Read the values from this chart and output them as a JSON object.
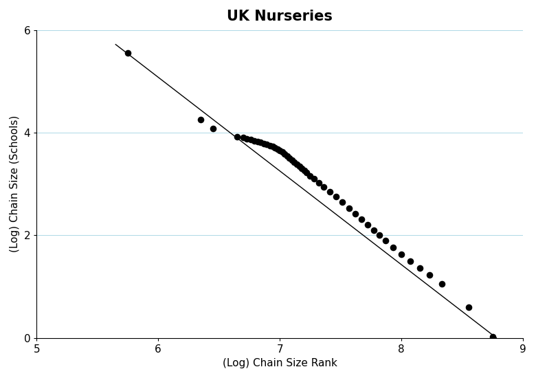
{
  "title": "UK Nurseries",
  "xlabel": "(Log) Chain Size Rank",
  "ylabel": "(Log) Chain Size (Schools)",
  "xlim": [
    5,
    9
  ],
  "ylim": [
    0,
    6
  ],
  "xticks": [
    5,
    6,
    7,
    8,
    9
  ],
  "yticks": [
    0,
    2,
    4,
    6
  ],
  "scatter_x": [
    5.75,
    6.35,
    6.45,
    6.65,
    6.7,
    6.73,
    6.76,
    6.79,
    6.82,
    6.84,
    6.87,
    6.89,
    6.92,
    6.94,
    6.96,
    6.98,
    7.0,
    7.02,
    7.04,
    7.06,
    7.08,
    7.1,
    7.12,
    7.14,
    7.16,
    7.18,
    7.2,
    7.22,
    7.25,
    7.28,
    7.32,
    7.36,
    7.41,
    7.46,
    7.51,
    7.57,
    7.62,
    7.67,
    7.72,
    7.77,
    7.82,
    7.87,
    7.93,
    8.0,
    8.07,
    8.15,
    8.23,
    8.33,
    8.55,
    8.75
  ],
  "scatter_y": [
    5.55,
    4.25,
    4.08,
    3.92,
    3.9,
    3.88,
    3.86,
    3.84,
    3.82,
    3.81,
    3.79,
    3.77,
    3.75,
    3.73,
    3.71,
    3.68,
    3.65,
    3.62,
    3.58,
    3.54,
    3.5,
    3.46,
    3.42,
    3.38,
    3.34,
    3.3,
    3.26,
    3.22,
    3.16,
    3.1,
    3.02,
    2.94,
    2.85,
    2.75,
    2.65,
    2.53,
    2.42,
    2.31,
    2.21,
    2.1,
    2.0,
    1.89,
    1.76,
    1.63,
    1.5,
    1.36,
    1.22,
    1.05,
    0.6,
    0.02
  ],
  "fit_x": [
    5.65,
    8.78
  ],
  "fit_y": [
    5.72,
    0.0
  ],
  "marker_color": "#000000",
  "marker_size": 48,
  "line_color": "#000000",
  "line_width": 1.0,
  "bg_color": "#ffffff",
  "grid_color": "#add8e6",
  "grid_linewidth": 0.7,
  "title_fontsize": 15,
  "label_fontsize": 11,
  "tick_labelsize": 11
}
